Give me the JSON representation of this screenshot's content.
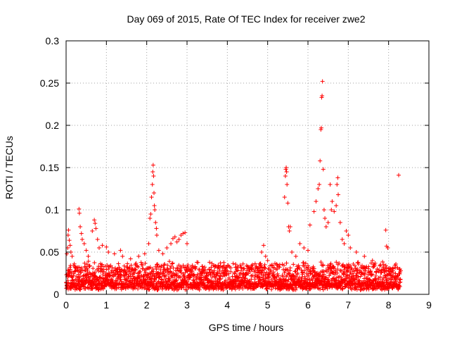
{
  "chart_data": {
    "type": "scatter",
    "title": "Day 069 of 2015, Rate Of TEC Index for receiver zwe2",
    "xlabel": "GPS time / hours",
    "ylabel": "ROTI / TECUs",
    "xlim": [
      0,
      9
    ],
    "ylim": [
      0,
      0.3
    ],
    "x_ticks": [
      "0",
      "1",
      "2",
      "3",
      "4",
      "5",
      "6",
      "7",
      "8",
      "9"
    ],
    "y_ticks": [
      "0",
      "0.05",
      "0.1",
      "0.15",
      "0.2",
      "0.25",
      "0.3"
    ],
    "grid": true,
    "marker": "+",
    "color": "#ff0000",
    "series": [
      {
        "name": "ROTI",
        "baseline_range": [
          0,
          8.3
        ],
        "baseline_level": [
          0.005,
          0.035
        ],
        "points": [
          [
            0.02,
            0.048
          ],
          [
            0.04,
            0.055
          ],
          [
            0.05,
            0.07
          ],
          [
            0.06,
            0.076
          ],
          [
            0.08,
            0.064
          ],
          [
            0.1,
            0.058
          ],
          [
            0.12,
            0.05
          ],
          [
            0.15,
            0.045
          ],
          [
            0.32,
            0.101
          ],
          [
            0.33,
            0.096
          ],
          [
            0.35,
            0.08
          ],
          [
            0.38,
            0.072
          ],
          [
            0.4,
            0.065
          ],
          [
            0.45,
            0.06
          ],
          [
            0.5,
            0.052
          ],
          [
            0.55,
            0.045
          ],
          [
            0.65,
            0.075
          ],
          [
            0.7,
            0.088
          ],
          [
            0.72,
            0.084
          ],
          [
            0.74,
            0.078
          ],
          [
            0.78,
            0.065
          ],
          [
            0.82,
            0.055
          ],
          [
            0.9,
            0.058
          ],
          [
            1.0,
            0.056
          ],
          [
            1.05,
            0.05
          ],
          [
            1.2,
            0.048
          ],
          [
            1.35,
            0.052
          ],
          [
            1.4,
            0.045
          ],
          [
            1.6,
            0.042
          ],
          [
            1.8,
            0.045
          ],
          [
            1.95,
            0.048
          ],
          [
            2.05,
            0.06
          ],
          [
            2.08,
            0.09
          ],
          [
            2.1,
            0.095
          ],
          [
            2.12,
            0.115
          ],
          [
            2.14,
            0.13
          ],
          [
            2.15,
            0.145
          ],
          [
            2.16,
            0.153
          ],
          [
            2.17,
            0.14
          ],
          [
            2.18,
            0.12
          ],
          [
            2.19,
            0.105
          ],
          [
            2.2,
            0.1
          ],
          [
            2.22,
            0.085
          ],
          [
            2.24,
            0.078
          ],
          [
            2.25,
            0.07
          ],
          [
            2.3,
            0.052
          ],
          [
            2.4,
            0.048
          ],
          [
            2.5,
            0.055
          ],
          [
            2.6,
            0.06
          ],
          [
            2.65,
            0.066
          ],
          [
            2.7,
            0.068
          ],
          [
            2.75,
            0.062
          ],
          [
            2.8,
            0.065
          ],
          [
            2.85,
            0.07
          ],
          [
            2.9,
            0.072
          ],
          [
            2.95,
            0.073
          ],
          [
            3.0,
            0.06
          ],
          [
            3.1,
            0.03
          ],
          [
            3.2,
            0.032
          ],
          [
            3.4,
            0.03
          ],
          [
            3.6,
            0.032
          ],
          [
            3.8,
            0.03
          ],
          [
            4.0,
            0.028
          ],
          [
            4.2,
            0.032
          ],
          [
            4.4,
            0.03
          ],
          [
            4.6,
            0.034
          ],
          [
            4.8,
            0.036
          ],
          [
            4.85,
            0.05
          ],
          [
            4.9,
            0.058
          ],
          [
            4.95,
            0.045
          ],
          [
            5.0,
            0.04
          ],
          [
            5.1,
            0.034
          ],
          [
            5.3,
            0.035
          ],
          [
            5.42,
            0.115
          ],
          [
            5.44,
            0.14
          ],
          [
            5.45,
            0.148
          ],
          [
            5.46,
            0.15
          ],
          [
            5.47,
            0.145
          ],
          [
            5.48,
            0.13
          ],
          [
            5.5,
            0.108
          ],
          [
            5.52,
            0.08
          ],
          [
            5.54,
            0.075
          ],
          [
            5.56,
            0.08
          ],
          [
            5.6,
            0.05
          ],
          [
            5.7,
            0.045
          ],
          [
            5.8,
            0.06
          ],
          [
            5.9,
            0.055
          ],
          [
            6.0,
            0.052
          ],
          [
            6.05,
            0.082
          ],
          [
            6.15,
            0.098
          ],
          [
            6.2,
            0.11
          ],
          [
            6.25,
            0.125
          ],
          [
            6.28,
            0.13
          ],
          [
            6.3,
            0.158
          ],
          [
            6.32,
            0.195
          ],
          [
            6.33,
            0.197
          ],
          [
            6.34,
            0.233
          ],
          [
            6.35,
            0.235
          ],
          [
            6.36,
            0.252
          ],
          [
            6.38,
            0.148
          ],
          [
            6.4,
            0.1
          ],
          [
            6.42,
            0.09
          ],
          [
            6.45,
            0.08
          ],
          [
            6.5,
            0.085
          ],
          [
            6.55,
            0.13
          ],
          [
            6.58,
            0.1
          ],
          [
            6.6,
            0.11
          ],
          [
            6.65,
            0.098
          ],
          [
            6.7,
            0.105
          ],
          [
            6.72,
            0.13
          ],
          [
            6.74,
            0.138
          ],
          [
            6.75,
            0.118
          ],
          [
            6.8,
            0.085
          ],
          [
            6.85,
            0.065
          ],
          [
            6.9,
            0.06
          ],
          [
            6.95,
            0.075
          ],
          [
            7.0,
            0.07
          ],
          [
            7.05,
            0.055
          ],
          [
            7.2,
            0.05
          ],
          [
            7.4,
            0.045
          ],
          [
            7.6,
            0.04
          ],
          [
            7.8,
            0.035
          ],
          [
            7.93,
            0.076
          ],
          [
            7.95,
            0.057
          ],
          [
            7.98,
            0.055
          ],
          [
            8.1,
            0.03
          ],
          [
            8.25,
            0.141
          ],
          [
            8.28,
            0.03
          ]
        ]
      }
    ]
  }
}
